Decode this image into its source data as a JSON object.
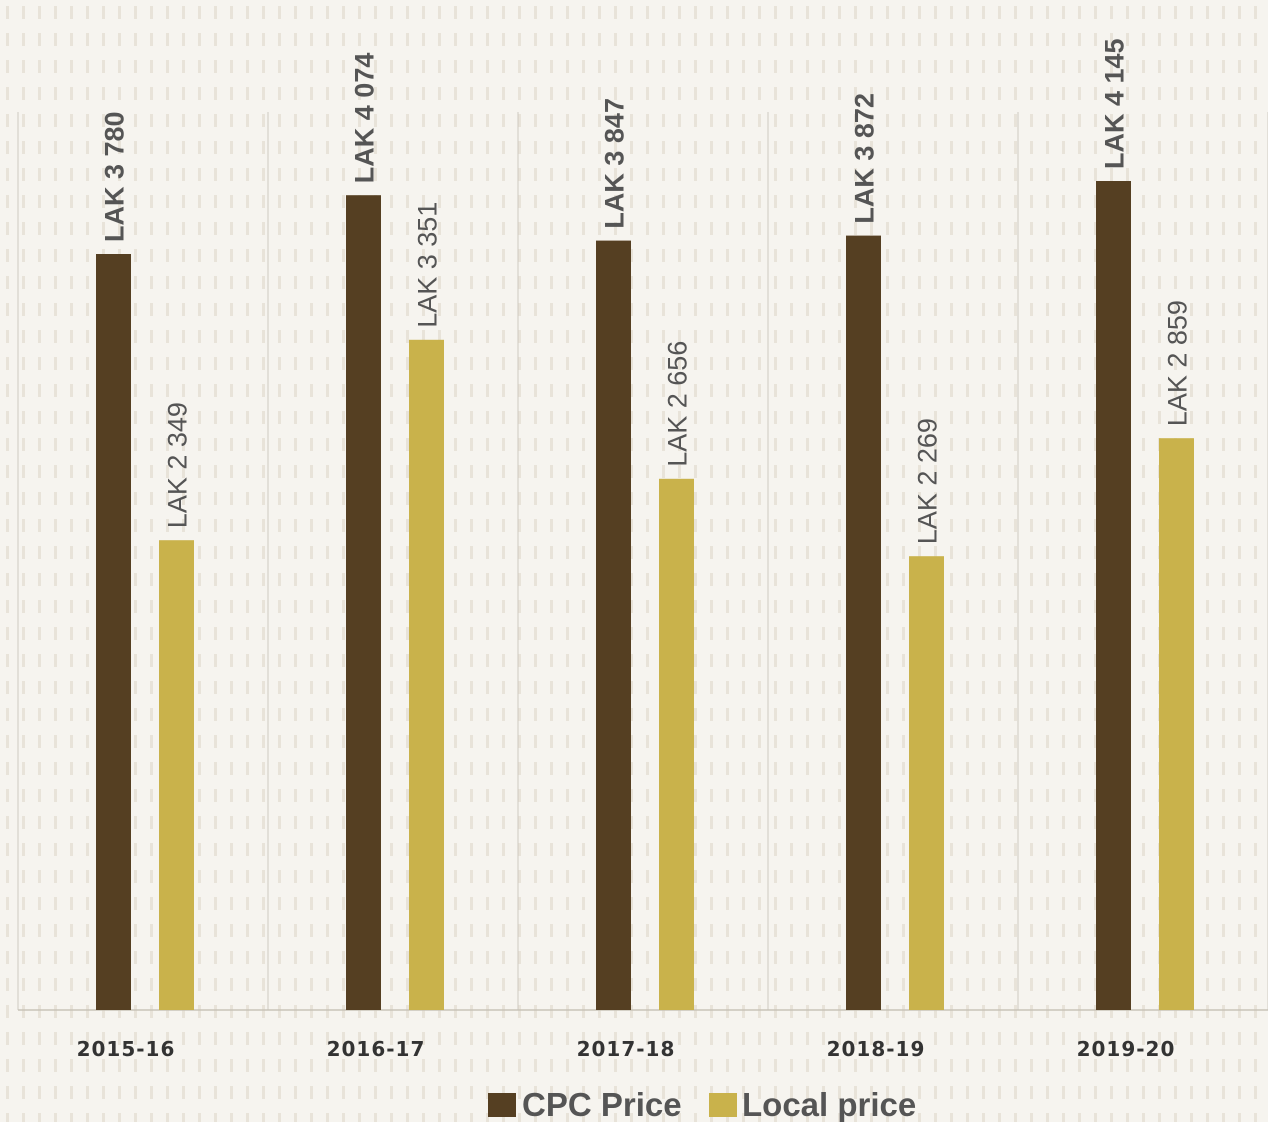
{
  "chart_data": {
    "type": "bar",
    "categories": [
      "2015-16",
      "2016-17",
      "2017-18",
      "2018-19",
      "2019-20"
    ],
    "series": [
      {
        "name": "CPC Price",
        "color": "#553f22",
        "values": [
          3780,
          4074,
          3847,
          3872,
          4145
        ],
        "labels": [
          "LAK 3 780",
          "LAK 4 074",
          "LAK 3 847",
          "LAK 3 872",
          "LAK 4 145"
        ]
      },
      {
        "name": "Local price",
        "color": "#c9b24b",
        "values": [
          2349,
          3351,
          2656,
          2269,
          2859
        ],
        "labels": [
          "LAK 2 349",
          "LAK 3 351",
          "LAK 2 656",
          "LAK 2 269",
          "LAK 2 859"
        ]
      }
    ],
    "title": "",
    "xlabel": "",
    "ylabel": "",
    "ylim": [
      0,
      5000
    ],
    "grid": "vertical category separators",
    "legend_position": "bottom"
  }
}
